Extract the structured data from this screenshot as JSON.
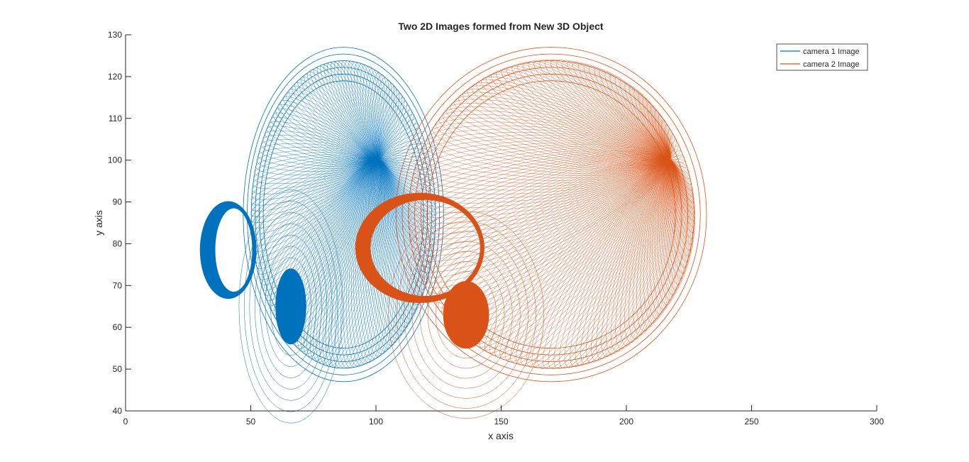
{
  "chart_data": {
    "type": "line",
    "title": "Two 2D Images formed from New 3D Object",
    "xlabel": "x axis",
    "ylabel": "y axis",
    "xlim": [
      0,
      300
    ],
    "ylim": [
      40,
      130
    ],
    "xticks": [
      0,
      50,
      100,
      150,
      200,
      250,
      300
    ],
    "yticks": [
      40,
      50,
      60,
      70,
      80,
      90,
      100,
      110,
      120,
      130
    ],
    "grid": false,
    "legend_position": "top-right",
    "series": [
      {
        "name": "camera 1 Image",
        "color": "#0072BD",
        "shape": {
          "outer_ellipse": {
            "center": [
              87,
              87
            ],
            "rx": 40,
            "ry": 40
          },
          "hub": [
            100,
            100
          ],
          "inner_blob": {
            "center": [
              66,
              65
            ],
            "rx": 6,
            "ry": 9
          },
          "handle": {
            "x": [
              30,
              52
            ],
            "y": [
              67,
              90
            ]
          }
        }
      },
      {
        "name": "camera 2 Image",
        "color": "#D95319",
        "shape": {
          "outer_ellipse": {
            "center": [
              170,
              87
            ],
            "rx": 62,
            "ry": 40
          },
          "hub": [
            217,
            100
          ],
          "inner_blob": {
            "center": [
              136,
              63
            ],
            "rx": 9,
            "ry": 8
          },
          "handle": {
            "x": [
              92,
              143
            ],
            "y": [
              66,
              92
            ]
          }
        }
      }
    ]
  }
}
